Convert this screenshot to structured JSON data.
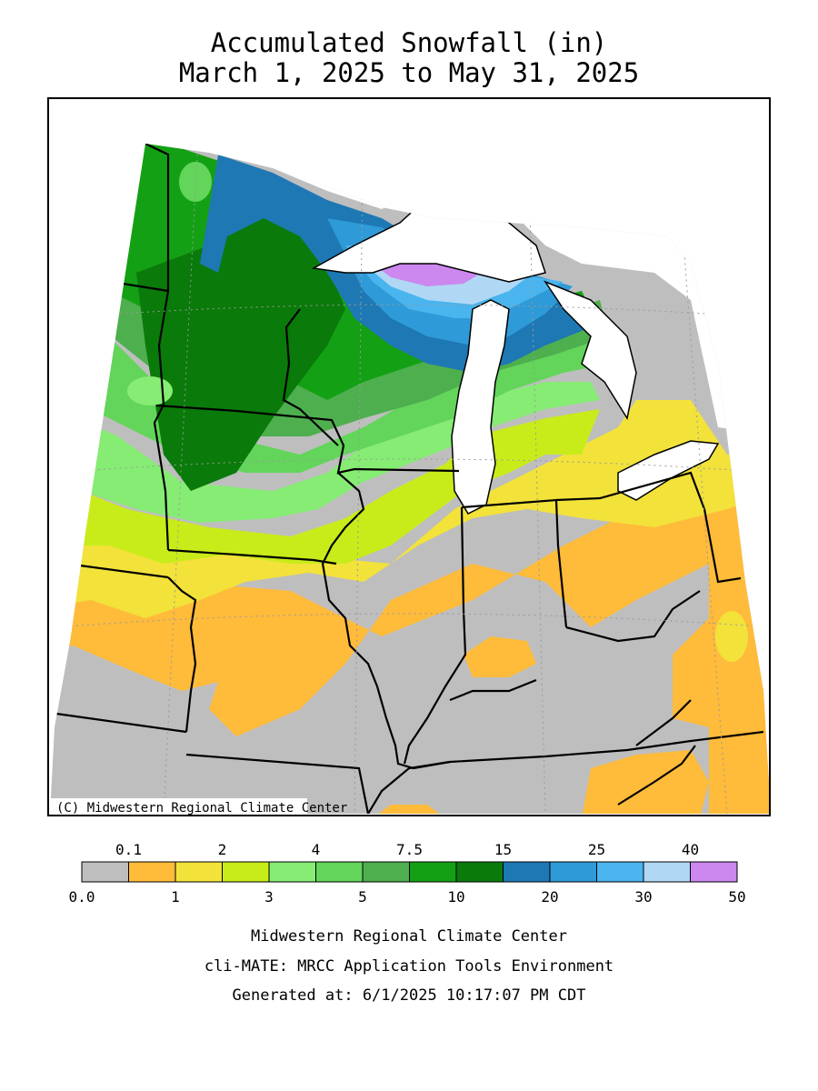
{
  "title": {
    "line1": "Accumulated Snowfall (in)",
    "line2": "March 1, 2025 to May 31, 2025"
  },
  "map": {
    "copyright": "(C) Midwestern Regional Climate Center",
    "regions": [
      {
        "name": "upper-michigan-maximum",
        "range": "40-50",
        "color": "#cc88ee"
      },
      {
        "name": "superior-shore-band",
        "range": "30-40",
        "color": "#b0d8f5"
      },
      {
        "name": "northern-wisconsin",
        "range": "15-25",
        "color": "#2f8fd1"
      },
      {
        "name": "northern-minnesota",
        "range": "10-15",
        "color": "#0a7a0a"
      },
      {
        "name": "iowa-northern-illinois",
        "range": "2-3",
        "color": "#c8ec1a"
      },
      {
        "name": "southern-tier",
        "range": "0.0-0.1",
        "color": "#bebebe"
      }
    ]
  },
  "legend": {
    "top_labels": [
      "0.1",
      "2",
      "4",
      "7.5",
      "15",
      "25",
      "40"
    ],
    "bottom_labels": [
      "0.0",
      "1",
      "3",
      "5",
      "10",
      "20",
      "30",
      "50"
    ],
    "colors": [
      "#bebebe",
      "#ffbb3a",
      "#f2e23a",
      "#c8ec1a",
      "#86ec74",
      "#62d55a",
      "#4eaf4e",
      "#14a014",
      "#0a7a0a",
      "#1e78b4",
      "#2f9ad8",
      "#4ab4ee",
      "#b0d8f5",
      "#cc88ee"
    ]
  },
  "footer": {
    "line1": "Midwestern Regional Climate Center",
    "line2": "cli-MATE: MRCC Application Tools Environment",
    "line3": "Generated at: 6/1/2025 10:17:07 PM CDT"
  }
}
